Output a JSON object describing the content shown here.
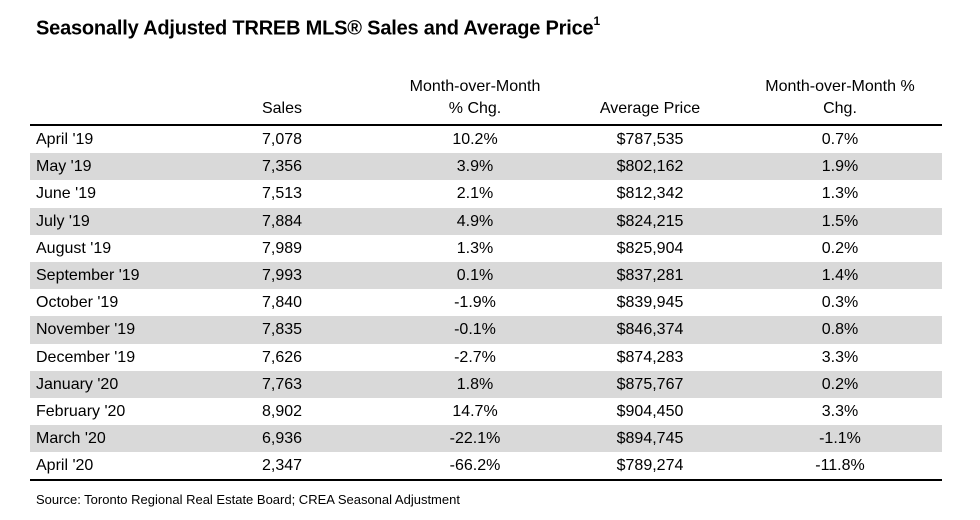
{
  "title": "Seasonally Adjusted TRREB MLS® Sales and Average Price",
  "title_footnote": "1",
  "columns": {
    "sales": "Sales",
    "mom_line1": "Month-over-Month",
    "mom_line2": "% Chg.",
    "avg_price": "Average Price",
    "price_mom_line1": "Month-over-Month %",
    "price_mom_line2": "Chg."
  },
  "rows": [
    {
      "month": "April '19",
      "sales": "7,078",
      "mom": "10.2%",
      "price": "$787,535",
      "price_mom": "0.7%"
    },
    {
      "month": "May '19",
      "sales": "7,356",
      "mom": "3.9%",
      "price": "$802,162",
      "price_mom": "1.9%"
    },
    {
      "month": "June '19",
      "sales": "7,513",
      "mom": "2.1%",
      "price": "$812,342",
      "price_mom": "1.3%"
    },
    {
      "month": "July '19",
      "sales": "7,884",
      "mom": "4.9%",
      "price": "$824,215",
      "price_mom": "1.5%"
    },
    {
      "month": "August '19",
      "sales": "7,989",
      "mom": "1.3%",
      "price": "$825,904",
      "price_mom": "0.2%"
    },
    {
      "month": "September '19",
      "sales": "7,993",
      "mom": "0.1%",
      "price": "$837,281",
      "price_mom": "1.4%"
    },
    {
      "month": "October '19",
      "sales": "7,840",
      "mom": "-1.9%",
      "price": "$839,945",
      "price_mom": "0.3%"
    },
    {
      "month": "November '19",
      "sales": "7,835",
      "mom": "-0.1%",
      "price": "$846,374",
      "price_mom": "0.8%"
    },
    {
      "month": "December '19",
      "sales": "7,626",
      "mom": "-2.7%",
      "price": "$874,283",
      "price_mom": "3.3%"
    },
    {
      "month": "January '20",
      "sales": "7,763",
      "mom": "1.8%",
      "price": "$875,767",
      "price_mom": "0.2%"
    },
    {
      "month": "February '20",
      "sales": "8,902",
      "mom": "14.7%",
      "price": "$904,450",
      "price_mom": "3.3%"
    },
    {
      "month": "March '20",
      "sales": "6,936",
      "mom": "-22.1%",
      "price": "$894,745",
      "price_mom": "-1.1%"
    },
    {
      "month": "April '20",
      "sales": "2,347",
      "mom": "-66.2%",
      "price": "$789,274",
      "price_mom": "-11.8%"
    }
  ],
  "source": "Source: Toronto Regional Real Estate Board; CREA Seasonal Adjustment"
}
